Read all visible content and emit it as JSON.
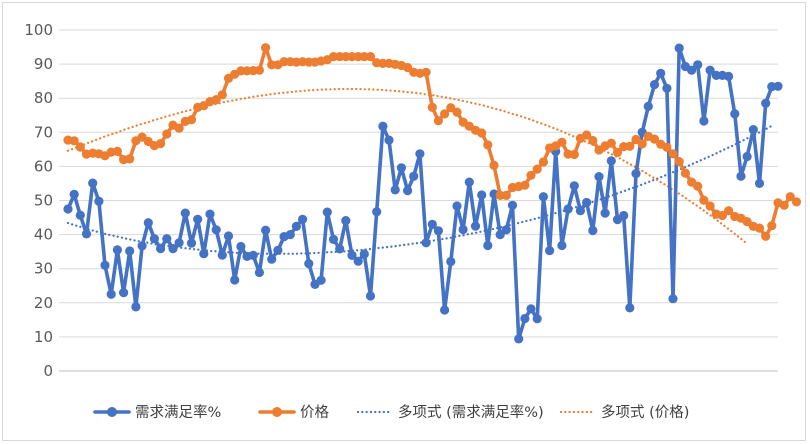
{
  "chart_data": {
    "type": "line",
    "title": "",
    "xlabel": "",
    "ylabel": "",
    "ylim": [
      0,
      100
    ],
    "yticks": [
      "0",
      "10",
      "20",
      "30",
      "40",
      "50",
      "60",
      "70",
      "80",
      "90",
      "100"
    ],
    "grid": "horizontal",
    "legend_position": "bottom",
    "series": [
      {
        "name": "需求满足率%",
        "color": "#4472c4",
        "values": [
          47.5,
          51.8,
          45.7,
          40.2,
          55.1,
          49.8,
          31.0,
          22.5,
          35.5,
          23.0,
          35.2,
          18.8,
          36.7,
          43.5,
          38.8,
          35.9,
          38.8,
          35.9,
          37.6,
          46.3,
          37.5,
          44.5,
          34.4,
          46.0,
          41.4,
          34.0,
          39.6,
          26.7,
          36.5,
          33.6,
          33.9,
          28.9,
          41.3,
          32.8,
          35.4,
          39.4,
          40.0,
          42.4,
          44.5,
          31.5,
          25.4,
          26.6,
          46.6,
          38.6,
          35.8,
          44.1,
          33.9,
          32.2,
          34.3,
          22.0,
          46.7,
          71.8,
          67.7,
          53.1,
          59.6,
          52.9,
          57.1,
          63.7,
          37.6,
          43.0,
          41.1,
          17.9,
          32.1,
          48.4,
          41.5,
          55.4,
          42.5,
          51.6,
          36.8,
          51.9,
          40.0,
          41.4,
          48.6,
          9.4,
          15.4,
          18.2,
          15.3,
          51.1,
          35.3,
          64.4,
          36.8,
          47.5,
          54.3,
          47.0,
          49.4,
          41.2,
          57.0,
          46.3,
          61.6,
          44.4,
          45.6,
          18.5,
          57.9,
          70.0,
          77.6,
          84.0,
          87.3,
          82.9,
          21.2,
          94.7,
          89.3,
          88.2,
          89.8,
          73.3,
          88.2,
          86.7,
          86.7,
          86.4,
          75.4,
          57.1,
          62.9,
          70.8,
          55.0,
          78.5,
          83.4,
          83.5
        ]
      },
      {
        "name": "价格",
        "color": "#ed7d31",
        "values": [
          67.7,
          67.5,
          65.7,
          63.6,
          63.9,
          63.7,
          63.1,
          64.2,
          64.4,
          62.0,
          62.2,
          67.5,
          68.6,
          67.3,
          66.1,
          66.7,
          69.5,
          72.1,
          71.2,
          73.2,
          73.7,
          77.3,
          77.8,
          79.0,
          79.6,
          81.0,
          85.8,
          87.0,
          88.0,
          88.0,
          88.1,
          88.2,
          94.8,
          89.8,
          89.8,
          90.7,
          90.7,
          90.6,
          90.7,
          90.6,
          90.6,
          90.9,
          91.3,
          92.2,
          92.2,
          92.2,
          92.2,
          92.2,
          92.2,
          92.2,
          90.4,
          90.2,
          90.2,
          89.9,
          89.6,
          89.0,
          87.6,
          87.3,
          87.6,
          77.3,
          73.4,
          75.4,
          77.2,
          75.9,
          73.0,
          71.8,
          70.6,
          69.8,
          66.3,
          60.3,
          51.5,
          51.5,
          53.8,
          54.1,
          54.5,
          57.4,
          59.2,
          61.3,
          65.4,
          66.0,
          67.1,
          63.6,
          63.5,
          68.2,
          69.2,
          67.6,
          64.8,
          66.0,
          66.8,
          64.1,
          65.8,
          65.9,
          67.9,
          66.6,
          68.8,
          68.0,
          66.5,
          65.6,
          63.7,
          61.4,
          58.0,
          55.4,
          54.2,
          50.1,
          48.4,
          46.0,
          45.6,
          47.0,
          45.3,
          44.8,
          43.8,
          42.4,
          41.9,
          39.5,
          42.6,
          49.3,
          48.6,
          51.1,
          49.6
        ]
      },
      {
        "name": "多项式 (需求满足率%)",
        "color": "#4472c4",
        "trendline_of": "需求满足率%",
        "values": [
          43.4,
          42.8,
          42.3,
          41.7,
          41.2,
          40.7,
          40.2,
          39.8,
          39.4,
          39.0,
          38.6,
          38.2,
          37.9,
          37.6,
          37.2,
          37.0,
          36.7,
          36.4,
          36.2,
          36.0,
          35.8,
          35.6,
          35.4,
          35.2,
          35.1,
          35.0,
          34.8,
          34.7,
          34.6,
          34.6,
          34.5,
          34.4,
          34.4,
          34.4,
          34.4,
          34.4,
          34.4,
          34.4,
          34.5,
          34.5,
          34.6,
          34.7,
          34.8,
          34.9,
          35.0,
          35.1,
          35.3,
          35.4,
          35.6,
          35.8,
          36.0,
          36.2,
          36.4,
          36.6,
          36.9,
          37.1,
          37.4,
          37.6,
          37.9,
          38.2,
          38.5,
          38.8,
          39.1,
          39.5,
          39.8,
          40.2,
          40.5,
          40.9,
          41.3,
          41.7,
          42.1,
          42.5,
          43.0,
          43.4,
          43.9,
          44.3,
          44.8,
          45.3,
          45.8,
          46.3,
          46.8,
          47.4,
          47.9,
          48.5,
          49.0,
          49.6,
          50.2,
          50.8,
          51.4,
          52.1,
          52.7,
          53.4,
          54.0,
          54.7,
          55.4,
          56.1,
          56.8,
          57.6,
          58.3,
          59.0,
          59.8,
          60.6,
          61.4,
          62.2,
          63.0,
          63.8,
          64.7,
          65.5,
          66.4,
          67.3,
          68.2,
          69.1,
          70.0,
          70.9,
          71.9
        ]
      },
      {
        "name": "多项式 (价格)",
        "color": "#ed7d31",
        "trendline_of": "价格",
        "values": [
          64.6,
          65.3,
          66.0,
          66.7,
          67.4,
          68.1,
          68.8,
          69.4,
          70.0,
          70.7,
          71.3,
          71.9,
          72.5,
          73.0,
          73.6,
          74.1,
          74.7,
          75.2,
          75.7,
          76.2,
          76.6,
          77.1,
          77.5,
          77.9,
          78.3,
          78.7,
          79.1,
          79.4,
          79.8,
          80.1,
          80.4,
          80.7,
          80.9,
          81.2,
          81.4,
          81.6,
          81.8,
          82.0,
          82.1,
          82.3,
          82.4,
          82.5,
          82.6,
          82.6,
          82.7,
          82.7,
          82.7,
          82.7,
          82.6,
          82.6,
          82.5,
          82.4,
          82.3,
          82.1,
          82.0,
          81.8,
          81.6,
          81.4,
          81.1,
          80.9,
          80.6,
          80.3,
          79.9,
          79.6,
          79.2,
          78.8,
          78.4,
          78.0,
          77.5,
          77.0,
          76.5,
          76.0,
          75.4,
          74.9,
          74.3,
          73.7,
          73.0,
          72.4,
          71.7,
          71.0,
          70.3,
          69.5,
          68.7,
          68.0,
          67.1,
          66.3,
          65.4,
          64.5,
          63.6,
          62.7,
          61.7,
          60.7,
          59.7,
          58.7,
          57.6,
          56.5,
          55.4,
          54.3,
          53.1,
          52.0,
          50.8,
          49.5,
          48.3,
          47.0,
          45.7,
          44.4,
          43.0,
          41.6,
          40.2,
          38.8,
          37.3
        ]
      }
    ]
  }
}
